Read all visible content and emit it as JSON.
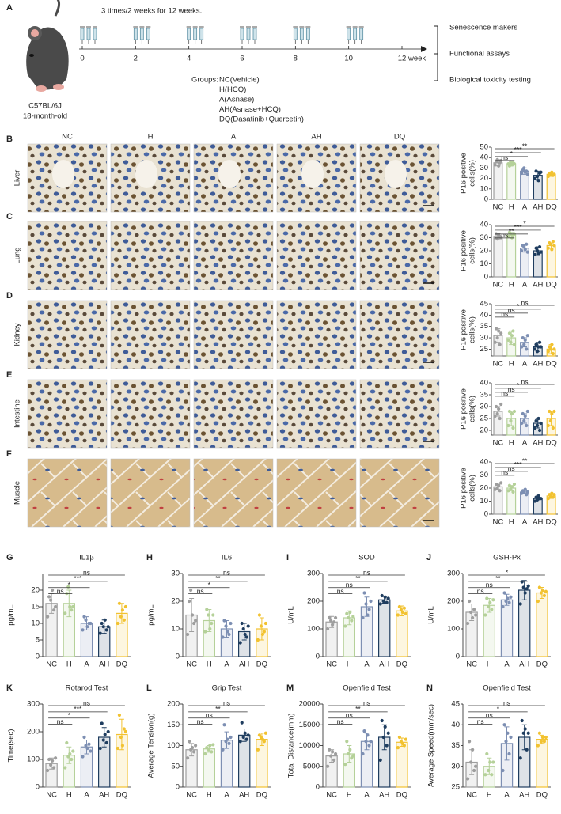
{
  "schematic": {
    "panel": "A",
    "mouse_label": [
      "C57BL/6J",
      "18-month-old"
    ],
    "schedule": "3 times/2 weeks for 12 weeks.",
    "axis_ticks": [
      0,
      2,
      4,
      6,
      8,
      10,
      12
    ],
    "axis_unit": "week",
    "groups_label": "Groups:",
    "groups": [
      "NC(Vehicle)",
      "H(HCQ)",
      "A(Asnase)",
      "AH(Asnase+HCQ)",
      "DQ(Dasatinib+Quercetin)"
    ],
    "outcomes": [
      "Senescence makers",
      "Functional assays",
      "Biological toxicity testing"
    ]
  },
  "micrographs": {
    "columns": [
      "NC",
      "H",
      "A",
      "AH",
      "DQ"
    ],
    "rows": [
      {
        "panel": "B",
        "tissue": "Liver"
      },
      {
        "panel": "C",
        "tissue": "Lung"
      },
      {
        "panel": "D",
        "tissue": "Kidney"
      },
      {
        "panel": "E",
        "tissue": "Intestine"
      },
      {
        "panel": "F",
        "tissue": "Muscle"
      }
    ]
  },
  "chart_data": [
    {
      "type": "bar",
      "ylabel": [
        "P16 positive",
        "cells(%)"
      ],
      "categories": [
        "NC",
        "H",
        "A",
        "AH",
        "DQ"
      ],
      "colors": [
        "#9e9e9e",
        "#b5d199",
        "#7d8fb3",
        "#1f3d5f",
        "#f2c230"
      ],
      "values": [
        35,
        34,
        27,
        23,
        24
      ],
      "errors": [
        3,
        2,
        3,
        4,
        2
      ],
      "points": [
        [
          33,
          36,
          38,
          32,
          35,
          37
        ],
        [
          34,
          32,
          36,
          33,
          35,
          34
        ],
        [
          25,
          28,
          30,
          26,
          27,
          24
        ],
        [
          20,
          27,
          22,
          18,
          25,
          26
        ],
        [
          22,
          25,
          24,
          26,
          23,
          24
        ]
      ],
      "significance": [
        null,
        "ns",
        "*",
        "***",
        "**"
      ],
      "ylim": [
        0,
        50
      ],
      "yticks": [
        0,
        10,
        20,
        30,
        40,
        50
      ]
    },
    {
      "type": "bar",
      "ylabel": [
        "P16 positive",
        "cells(%)"
      ],
      "categories": [
        "NC",
        "H",
        "A",
        "AH",
        "DQ"
      ],
      "colors": [
        "#9e9e9e",
        "#b5d199",
        "#7d8fb3",
        "#1f3d5f",
        "#f2c230"
      ],
      "values": [
        31,
        32,
        22,
        20,
        24
      ],
      "errors": [
        2,
        2,
        3,
        3,
        2
      ],
      "points": [
        [
          30,
          33,
          29,
          32,
          31,
          30
        ],
        [
          31,
          34,
          33,
          30,
          32,
          33
        ],
        [
          20,
          24,
          23,
          21,
          25,
          19
        ],
        [
          17,
          22,
          20,
          18,
          23,
          19
        ],
        [
          22,
          26,
          25,
          21,
          27,
          24
        ]
      ],
      "significance": [
        null,
        "ns",
        "**",
        "***",
        "*"
      ],
      "ylim": [
        0,
        40
      ],
      "yticks": [
        0,
        10,
        20,
        30,
        40
      ]
    },
    {
      "type": "bar",
      "ylabel": [
        "P16 positive",
        "cells(%)"
      ],
      "categories": [
        "NC",
        "H",
        "A",
        "AH",
        "DQ"
      ],
      "colors": [
        "#9e9e9e",
        "#b5d199",
        "#7d8fb3",
        "#1f3d5f",
        "#f2c230"
      ],
      "values": [
        31,
        30,
        28,
        26,
        25
      ],
      "errors": [
        3,
        3,
        2,
        2,
        2
      ],
      "points": [
        [
          28,
          34,
          30,
          33,
          27,
          32
        ],
        [
          29,
          32,
          28,
          31,
          33,
          27
        ],
        [
          26,
          30,
          27,
          29,
          25,
          31
        ],
        [
          25,
          27,
          24,
          26,
          28,
          26
        ],
        [
          24,
          26,
          25,
          27,
          23,
          25
        ]
      ],
      "significance": [
        null,
        "ns",
        "ns",
        "*",
        "ns"
      ],
      "ylim": [
        22,
        45
      ],
      "yticks": [
        25,
        30,
        35,
        40,
        45
      ]
    },
    {
      "type": "bar",
      "ylabel": [
        "P16 positive",
        "cells(%)"
      ],
      "categories": [
        "NC",
        "H",
        "A",
        "AH",
        "DQ"
      ],
      "colors": [
        "#9e9e9e",
        "#b5d199",
        "#7d8fb3",
        "#1f3d5f",
        "#f2c230"
      ],
      "values": [
        28,
        25,
        25,
        23,
        25
      ],
      "errors": [
        2,
        3,
        2,
        2,
        3
      ],
      "points": [
        [
          26,
          30,
          27,
          29,
          25,
          31
        ],
        [
          22,
          28,
          24,
          27,
          21,
          28
        ],
        [
          23,
          27,
          24,
          26,
          22,
          28
        ],
        [
          21,
          24,
          22,
          25,
          20,
          23
        ],
        [
          22,
          28,
          24,
          27,
          21,
          28
        ]
      ],
      "significance": [
        null,
        "ns",
        "ns",
        "*",
        "ns"
      ],
      "ylim": [
        18,
        40
      ],
      "yticks": [
        20,
        25,
        30,
        35,
        40
      ]
    },
    {
      "type": "bar",
      "ylabel": [
        "P16 positive",
        "cells(%)"
      ],
      "categories": [
        "NC",
        "H",
        "A",
        "AH",
        "DQ"
      ],
      "colors": [
        "#9e9e9e",
        "#b5d199",
        "#7d8fb3",
        "#1f3d5f",
        "#f2c230"
      ],
      "values": [
        21,
        20,
        17,
        12,
        14
      ],
      "errors": [
        2,
        2,
        1,
        1,
        1
      ],
      "points": [
        [
          19,
          23,
          20,
          22,
          18,
          24
        ],
        [
          18,
          22,
          19,
          21,
          17,
          23
        ],
        [
          16,
          18,
          17,
          19,
          15,
          17
        ],
        [
          10,
          13,
          11,
          14,
          12,
          12
        ],
        [
          12,
          15,
          13,
          16,
          13,
          15
        ]
      ],
      "significance": [
        null,
        "ns",
        "ns",
        "***",
        "**"
      ],
      "ylim": [
        0,
        40
      ],
      "yticks": [
        0,
        10,
        20,
        30,
        40
      ]
    },
    {
      "type": "bar",
      "panel": "G",
      "title": "IL1β",
      "ylabel": "pg/mL",
      "categories": [
        "NC",
        "H",
        "A",
        "AH",
        "DQ"
      ],
      "colors": [
        "#9e9e9e",
        "#b5d199",
        "#7d8fb3",
        "#1f3d5f",
        "#f2c230"
      ],
      "values": [
        16,
        16,
        10,
        9,
        13
      ],
      "errors": [
        3,
        4,
        2,
        2,
        3
      ],
      "points": [
        [
          12,
          18,
          17,
          20,
          14,
          15
        ],
        [
          13,
          19,
          21,
          15,
          14,
          15
        ],
        [
          8,
          12,
          11,
          9,
          10,
          10
        ],
        [
          7,
          10,
          9,
          11,
          8,
          9
        ],
        [
          10,
          16,
          12,
          14,
          11,
          15
        ]
      ],
      "significance": [
        null,
        "ns",
        "*",
        "***",
        "ns"
      ],
      "ylim": [
        0,
        25
      ],
      "yticks": [
        0,
        5,
        10,
        15,
        20
      ]
    },
    {
      "type": "bar",
      "panel": "H",
      "title": "IL6",
      "ylabel": "pg/mL",
      "categories": [
        "NC",
        "H",
        "A",
        "AH",
        "DQ"
      ],
      "colors": [
        "#9e9e9e",
        "#b5d199",
        "#7d8fb3",
        "#1f3d5f",
        "#f2c230"
      ],
      "values": [
        15,
        13,
        10,
        9,
        10
      ],
      "errors": [
        6,
        4,
        3,
        3,
        4
      ],
      "points": [
        [
          8,
          20,
          24,
          15,
          12,
          13
        ],
        [
          9,
          17,
          15,
          10,
          12,
          15
        ],
        [
          7,
          13,
          11,
          9,
          8,
          12
        ],
        [
          5,
          12,
          10,
          8,
          7,
          11
        ],
        [
          6,
          15,
          11,
          8,
          9,
          12
        ]
      ],
      "significance": [
        null,
        "ns",
        "*",
        "**",
        "ns"
      ],
      "ylim": [
        0,
        30
      ],
      "yticks": [
        0,
        10,
        20,
        30
      ]
    },
    {
      "type": "bar",
      "panel": "I",
      "title": "SOD",
      "ylabel": "U/mL",
      "categories": [
        "NC",
        "H",
        "A",
        "AH",
        "DQ"
      ],
      "colors": [
        "#9e9e9e",
        "#b5d199",
        "#7d8fb3",
        "#1f3d5f",
        "#f2c230"
      ],
      "values": [
        125,
        140,
        180,
        205,
        165
      ],
      "errors": [
        20,
        25,
        35,
        12,
        18
      ],
      "points": [
        [
          100,
          140,
          130,
          115,
          125,
          140
        ],
        [
          110,
          155,
          140,
          160,
          130,
          145
        ],
        [
          140,
          230,
          190,
          150,
          170,
          200
        ],
        [
          190,
          220,
          200,
          215,
          195,
          210
        ],
        [
          150,
          180,
          170,
          160,
          175,
          155
        ]
      ],
      "significance": [
        null,
        "ns",
        "ns",
        "**",
        "ns"
      ],
      "ylim": [
        0,
        300
      ],
      "yticks": [
        0,
        100,
        200,
        300
      ]
    },
    {
      "type": "bar",
      "panel": "J",
      "title": "GSH-Px",
      "ylabel": "U/mL",
      "categories": [
        "NC",
        "H",
        "A",
        "AH",
        "DQ"
      ],
      "colors": [
        "#9e9e9e",
        "#b5d199",
        "#7d8fb3",
        "#1f3d5f",
        "#f2c230"
      ],
      "values": [
        160,
        185,
        205,
        240,
        230
      ],
      "errors": [
        30,
        25,
        20,
        35,
        20
      ],
      "points": [
        [
          120,
          200,
          160,
          140,
          170,
          150
        ],
        [
          150,
          210,
          180,
          195,
          170,
          205
        ],
        [
          180,
          230,
          200,
          210,
          195,
          215
        ],
        [
          190,
          270,
          250,
          230,
          245,
          255
        ],
        [
          200,
          250,
          230,
          240,
          220,
          235
        ]
      ],
      "significance": [
        null,
        "ns",
        "ns",
        "**",
        "*"
      ],
      "ylim": [
        0,
        300
      ],
      "yticks": [
        0,
        100,
        200,
        300
      ]
    },
    {
      "type": "bar",
      "panel": "K",
      "title": "Rotarod Test",
      "ylabel": "Time(sec)",
      "categories": [
        "NC",
        "H",
        "A",
        "AH",
        "DQ"
      ],
      "colors": [
        "#9e9e9e",
        "#b5d199",
        "#7d8fb3",
        "#1f3d5f",
        "#f2c230"
      ],
      "values": [
        85,
        115,
        145,
        180,
        190
      ],
      "errors": [
        20,
        30,
        25,
        35,
        55
      ],
      "points": [
        [
          60,
          100,
          80,
          95,
          70,
          105
        ],
        [
          70,
          160,
          110,
          120,
          100,
          130
        ],
        [
          110,
          180,
          150,
          140,
          155,
          130
        ],
        [
          140,
          230,
          170,
          190,
          160,
          200
        ],
        [
          140,
          260,
          180,
          150,
          210,
          200
        ]
      ],
      "significance": [
        null,
        "ns",
        "*",
        "***",
        "ns"
      ],
      "ylim": [
        0,
        300
      ],
      "yticks": [
        0,
        100,
        200,
        300
      ]
    },
    {
      "type": "bar",
      "panel": "L",
      "title": "Grip Test",
      "ylabel": "Average Tension(g)",
      "categories": [
        "NC",
        "H",
        "A",
        "AH",
        "DQ"
      ],
      "colors": [
        "#9e9e9e",
        "#b5d199",
        "#7d8fb3",
        "#1f3d5f",
        "#f2c230"
      ],
      "values": [
        90,
        92,
        113,
        125,
        115
      ],
      "errors": [
        15,
        8,
        20,
        15,
        15
      ],
      "points": [
        [
          70,
          110,
          90,
          95,
          85,
          100
        ],
        [
          80,
          95,
          90,
          100,
          85,
          102
        ],
        [
          90,
          150,
          110,
          115,
          105,
          120
        ],
        [
          110,
          155,
          120,
          130,
          115,
          125
        ],
        [
          90,
          125,
          120,
          115,
          110,
          130
        ]
      ],
      "significance": [
        null,
        "ns",
        "ns",
        "**",
        "ns"
      ],
      "ylim": [
        0,
        200
      ],
      "yticks": [
        0,
        50,
        100,
        150,
        200
      ]
    },
    {
      "type": "bar",
      "panel": "M",
      "title": "Openfield Test",
      "ylabel": "Total Distance(mm)",
      "categories": [
        "NC",
        "H",
        "A",
        "AH",
        "DQ"
      ],
      "colors": [
        "#9e9e9e",
        "#b5d199",
        "#7d8fb3",
        "#1f3d5f",
        "#f2c230"
      ],
      "values": [
        7500,
        8000,
        11000,
        12000,
        10800
      ],
      "errors": [
        1500,
        2000,
        2000,
        3000,
        1000
      ],
      "points": [
        [
          5000,
          9000,
          7500,
          8500,
          6500,
          8000
        ],
        [
          5500,
          11000,
          8000,
          9000,
          7000,
          7500
        ],
        [
          8000,
          13500,
          11000,
          12500,
          10000,
          11000
        ],
        [
          6500,
          16000,
          12000,
          14500,
          10000,
          13000
        ],
        [
          9500,
          12000,
          11000,
          10500,
          10000,
          11500
        ]
      ],
      "significance": [
        null,
        "ns",
        "ns",
        "**",
        "ns"
      ],
      "ylim": [
        0,
        20000
      ],
      "yticks": [
        0,
        5000,
        10000,
        15000,
        20000
      ]
    },
    {
      "type": "bar",
      "panel": "N",
      "title": "Openfield Test",
      "ylabel": "Average Speed(mm/sec)",
      "categories": [
        "NC",
        "H",
        "A",
        "AH",
        "DQ"
      ],
      "colors": [
        "#9e9e9e",
        "#b5d199",
        "#7d8fb3",
        "#1f3d5f",
        "#f2c230"
      ],
      "values": [
        31,
        30,
        35.5,
        37,
        36.5
      ],
      "errors": [
        3,
        2,
        4,
        3,
        1
      ],
      "points": [
        [
          27,
          36,
          31,
          34,
          29,
          30
        ],
        [
          28,
          33,
          29,
          31,
          28,
          31
        ],
        [
          29,
          40,
          36,
          38,
          33,
          37
        ],
        [
          32,
          41,
          38,
          39,
          34,
          38
        ],
        [
          35,
          38,
          36,
          37,
          36,
          37
        ]
      ],
      "significance": [
        null,
        "ns",
        "ns",
        "*",
        "ns"
      ],
      "ylim": [
        25,
        45
      ],
      "yticks": [
        25,
        30,
        35,
        40,
        45
      ]
    }
  ]
}
